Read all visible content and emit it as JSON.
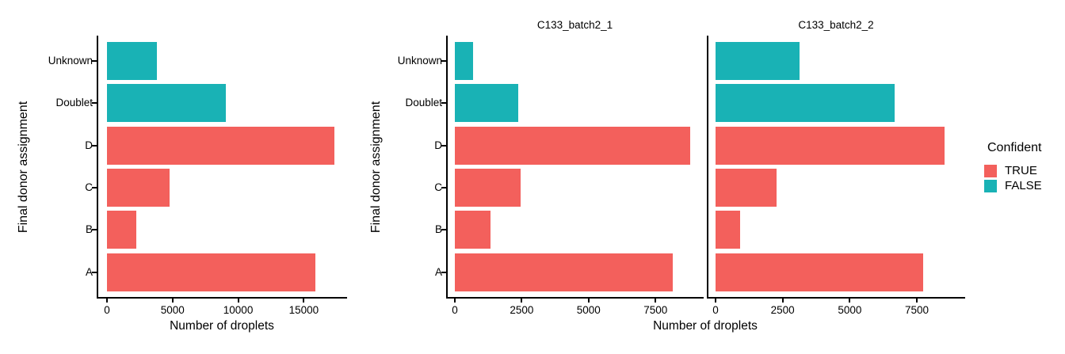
{
  "palette": {
    "TRUE": "#F3605C",
    "FALSE": "#19B2B5",
    "strip_bg": "#C7C7C7",
    "axis_color": "#000000"
  },
  "chart_data": [
    {
      "type": "bar",
      "orientation": "horizontal",
      "panel": "combined",
      "categories": [
        "Unknown",
        "Doublet",
        "D",
        "C",
        "B",
        "A"
      ],
      "values": [
        3800,
        9050,
        17330,
        4740,
        2240,
        15860
      ],
      "confident": [
        "FALSE",
        "FALSE",
        "TRUE",
        "TRUE",
        "TRUE",
        "TRUE"
      ],
      "xlabel": "Number of droplets",
      "ylabel": "Final donor assignment",
      "xlim": [
        0,
        18300
      ],
      "xticks": [
        0,
        5000,
        10000,
        15000
      ],
      "grid": false
    },
    {
      "type": "bar",
      "orientation": "horizontal",
      "panel": "facet",
      "facet_label": "C133_batch2_1",
      "categories": [
        "Unknown",
        "Doublet",
        "D",
        "C",
        "B",
        "A"
      ],
      "values": [
        670,
        2380,
        8790,
        2460,
        1320,
        8130
      ],
      "confident": [
        "FALSE",
        "FALSE",
        "TRUE",
        "TRUE",
        "TRUE",
        "TRUE"
      ],
      "xlabel": "Number of droplets",
      "ylabel": "Final donor assignment",
      "xlim": [
        0,
        9300
      ],
      "xticks": [
        0,
        2500,
        5000,
        7500
      ],
      "grid": false
    },
    {
      "type": "bar",
      "orientation": "horizontal",
      "panel": "facet",
      "facet_label": "C133_batch2_2",
      "categories": [
        "Unknown",
        "Doublet",
        "D",
        "C",
        "B",
        "A"
      ],
      "values": [
        3130,
        6670,
        8540,
        2280,
        920,
        7730
      ],
      "confident": [
        "FALSE",
        "FALSE",
        "TRUE",
        "TRUE",
        "TRUE",
        "TRUE"
      ],
      "xlabel": "Number of droplets",
      "ylabel": "Final donor assignment",
      "xlim": [
        0,
        9300
      ],
      "xticks": [
        0,
        2500,
        5000,
        7500
      ],
      "grid": false
    }
  ],
  "legend": {
    "title": "Confident",
    "position": "right",
    "items": [
      {
        "label": "TRUE",
        "color": "#F3605C"
      },
      {
        "label": "FALSE",
        "color": "#19B2B5"
      }
    ]
  }
}
